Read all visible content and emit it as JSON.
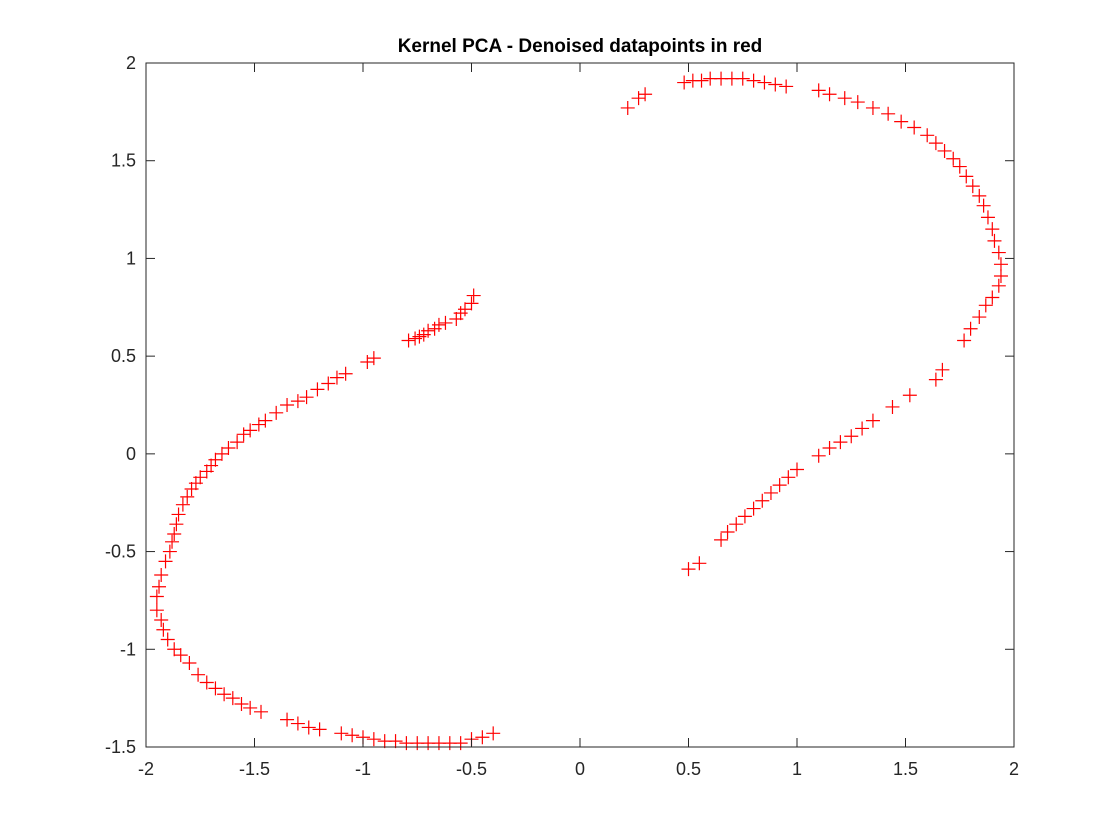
{
  "chart_data": {
    "type": "scatter",
    "title": "Kernel PCA - Denoised datapoints in red",
    "xlabel": "",
    "ylabel": "",
    "xlim": [
      -2,
      2
    ],
    "ylim": [
      -1.5,
      2
    ],
    "xticks": [
      -2,
      -1.5,
      -1,
      -0.5,
      0,
      0.5,
      1,
      1.5,
      2
    ],
    "xtick_labels": [
      "-2",
      "-1.5",
      "-1",
      "-0.5",
      "0",
      "0.5",
      "1",
      "1.5",
      "2"
    ],
    "yticks": [
      -1.5,
      -1,
      -0.5,
      0,
      0.5,
      1,
      1.5,
      2
    ],
    "ytick_labels": [
      "-1.5",
      "-1",
      "-0.5",
      "0",
      "0.5",
      "1",
      "1.5",
      "2"
    ],
    "grid": false,
    "marker": "+",
    "marker_color": "#ff0000",
    "series": [
      {
        "points": [
          [
            -0.49,
            0.81
          ],
          [
            -0.5,
            0.77
          ],
          [
            -0.53,
            0.74
          ],
          [
            -0.55,
            0.72
          ],
          [
            -0.57,
            0.69
          ],
          [
            -0.62,
            0.67
          ],
          [
            -0.65,
            0.66
          ],
          [
            -0.67,
            0.64
          ],
          [
            -0.7,
            0.63
          ],
          [
            -0.72,
            0.61
          ],
          [
            -0.74,
            0.6
          ],
          [
            -0.76,
            0.59
          ],
          [
            -0.79,
            0.58
          ],
          [
            -0.95,
            0.49
          ],
          [
            -0.98,
            0.47
          ],
          [
            -1.08,
            0.41
          ],
          [
            -1.12,
            0.39
          ],
          [
            -1.16,
            0.36
          ],
          [
            -1.21,
            0.33
          ],
          [
            -1.26,
            0.29
          ],
          [
            -1.3,
            0.27
          ],
          [
            -1.35,
            0.25
          ],
          [
            -1.4,
            0.21
          ],
          [
            -1.45,
            0.17
          ],
          [
            -1.48,
            0.15
          ],
          [
            -1.52,
            0.12
          ],
          [
            -1.55,
            0.1
          ],
          [
            -1.58,
            0.06
          ],
          [
            -1.62,
            0.03
          ],
          [
            -1.65,
            0.0
          ],
          [
            -1.68,
            -0.03
          ],
          [
            -1.7,
            -0.06
          ],
          [
            -1.72,
            -0.09
          ],
          [
            -1.75,
            -0.12
          ],
          [
            -1.77,
            -0.15
          ],
          [
            -1.79,
            -0.18
          ],
          [
            -1.81,
            -0.22
          ],
          [
            -1.83,
            -0.26
          ],
          [
            -1.85,
            -0.31
          ],
          [
            -1.86,
            -0.36
          ],
          [
            -1.87,
            -0.41
          ],
          [
            -1.88,
            -0.45
          ],
          [
            -1.89,
            -0.5
          ],
          [
            -1.91,
            -0.55
          ],
          [
            -1.93,
            -0.62
          ],
          [
            -1.94,
            -0.68
          ],
          [
            -1.95,
            -0.73
          ],
          [
            -1.95,
            -0.8
          ],
          [
            -1.93,
            -0.85
          ],
          [
            -1.92,
            -0.9
          ],
          [
            -1.9,
            -0.95
          ],
          [
            -1.87,
            -1.0
          ],
          [
            -1.84,
            -1.03
          ],
          [
            -1.8,
            -1.07
          ],
          [
            -1.76,
            -1.13
          ],
          [
            -1.72,
            -1.17
          ],
          [
            -1.68,
            -1.2
          ],
          [
            -1.64,
            -1.23
          ],
          [
            -1.6,
            -1.25
          ],
          [
            -1.56,
            -1.28
          ],
          [
            -1.52,
            -1.3
          ],
          [
            -1.47,
            -1.32
          ],
          [
            -1.35,
            -1.36
          ],
          [
            -1.3,
            -1.38
          ],
          [
            -1.25,
            -1.4
          ],
          [
            -1.2,
            -1.41
          ],
          [
            -1.1,
            -1.43
          ],
          [
            -1.05,
            -1.44
          ],
          [
            -1.0,
            -1.45
          ],
          [
            -0.95,
            -1.46
          ],
          [
            -0.9,
            -1.47
          ],
          [
            -0.85,
            -1.47
          ],
          [
            -0.8,
            -1.48
          ],
          [
            -0.75,
            -1.48
          ],
          [
            -0.7,
            -1.48
          ],
          [
            -0.65,
            -1.48
          ],
          [
            -0.6,
            -1.48
          ],
          [
            -0.55,
            -1.48
          ],
          [
            -0.5,
            -1.46
          ],
          [
            -0.45,
            -1.45
          ],
          [
            -0.4,
            -1.43
          ]
        ]
      },
      {
        "points": [
          [
            0.22,
            1.77
          ],
          [
            0.27,
            1.82
          ],
          [
            0.3,
            1.84
          ],
          [
            0.48,
            1.9
          ],
          [
            0.52,
            1.91
          ],
          [
            0.56,
            1.91
          ],
          [
            0.6,
            1.92
          ],
          [
            0.65,
            1.92
          ],
          [
            0.7,
            1.92
          ],
          [
            0.75,
            1.92
          ],
          [
            0.8,
            1.91
          ],
          [
            0.85,
            1.9
          ],
          [
            0.9,
            1.89
          ],
          [
            0.95,
            1.88
          ],
          [
            1.1,
            1.86
          ],
          [
            1.15,
            1.84
          ],
          [
            1.22,
            1.82
          ],
          [
            1.28,
            1.8
          ],
          [
            1.35,
            1.77
          ],
          [
            1.42,
            1.74
          ],
          [
            1.48,
            1.7
          ],
          [
            1.54,
            1.67
          ],
          [
            1.6,
            1.63
          ],
          [
            1.64,
            1.59
          ],
          [
            1.68,
            1.55
          ],
          [
            1.72,
            1.51
          ],
          [
            1.75,
            1.47
          ],
          [
            1.78,
            1.42
          ],
          [
            1.81,
            1.37
          ],
          [
            1.84,
            1.32
          ],
          [
            1.86,
            1.27
          ],
          [
            1.88,
            1.21
          ],
          [
            1.9,
            1.15
          ],
          [
            1.91,
            1.09
          ],
          [
            1.93,
            1.03
          ],
          [
            1.94,
            0.97
          ],
          [
            1.94,
            0.91
          ],
          [
            1.93,
            0.86
          ],
          [
            1.9,
            0.8
          ],
          [
            1.87,
            0.76
          ],
          [
            1.84,
            0.7
          ],
          [
            1.8,
            0.64
          ],
          [
            1.77,
            0.58
          ],
          [
            1.67,
            0.43
          ],
          [
            1.64,
            0.38
          ],
          [
            1.52,
            0.3
          ],
          [
            1.44,
            0.24
          ],
          [
            1.35,
            0.17
          ],
          [
            1.3,
            0.13
          ],
          [
            1.25,
            0.09
          ],
          [
            1.2,
            0.06
          ],
          [
            1.15,
            0.03
          ],
          [
            1.1,
            -0.01
          ],
          [
            1.0,
            -0.08
          ],
          [
            0.96,
            -0.12
          ],
          [
            0.92,
            -0.16
          ],
          [
            0.88,
            -0.2
          ],
          [
            0.84,
            -0.24
          ],
          [
            0.8,
            -0.28
          ],
          [
            0.76,
            -0.32
          ],
          [
            0.72,
            -0.36
          ],
          [
            0.68,
            -0.4
          ],
          [
            0.65,
            -0.44
          ],
          [
            0.55,
            -0.56
          ],
          [
            0.5,
            -0.59
          ]
        ]
      }
    ]
  }
}
